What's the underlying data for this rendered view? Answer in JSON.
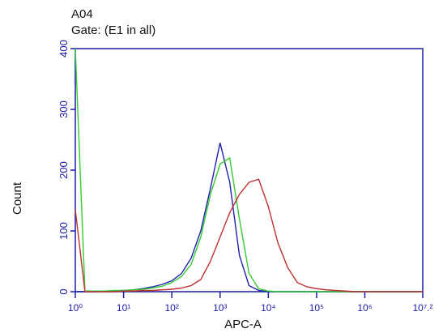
{
  "chart_data": {
    "type": "line",
    "title": "A04",
    "subtitle": "Gate: (E1 in all)",
    "x_label": "APC-A",
    "y_label": "Count",
    "log_x": true,
    "axis_color": "#1a1aa6",
    "x": [
      1,
      1.585,
      2.512,
      3.981,
      6.31,
      10,
      15.85,
      25.12,
      39.81,
      63.1,
      100,
      158.5,
      251.2,
      398.1,
      631,
      1000,
      1585,
      2512,
      3981,
      6310,
      10000,
      15850,
      25120,
      39810,
      63100,
      100000,
      158500,
      251200,
      398100,
      631000,
      1000000,
      1585000,
      2512000,
      3981000,
      6310000,
      10000000,
      15850000
    ],
    "series": [
      {
        "name": "blue",
        "color": "#1f1fb0",
        "values": [
          0,
          0,
          0,
          1,
          1,
          2,
          3,
          5,
          8,
          12,
          18,
          30,
          55,
          100,
          170,
          245,
          180,
          60,
          10,
          2,
          0,
          0,
          0,
          0,
          0,
          0,
          0,
          0,
          0,
          0,
          0,
          0,
          0,
          0,
          0,
          0,
          0
        ]
      },
      {
        "name": "green",
        "color": "#33cc33",
        "values": [
          400,
          1,
          1,
          1,
          2,
          2,
          3,
          4,
          6,
          9,
          15,
          25,
          45,
          90,
          160,
          210,
          220,
          120,
          30,
          5,
          1,
          0,
          0,
          0,
          0,
          0,
          0,
          0,
          0,
          0,
          0,
          0,
          0,
          0,
          0,
          0,
          0
        ]
      },
      {
        "name": "red",
        "color": "#c03030",
        "values": [
          135,
          0,
          0,
          0,
          0,
          1,
          1,
          2,
          2,
          3,
          4,
          6,
          10,
          20,
          50,
          90,
          130,
          160,
          180,
          185,
          140,
          80,
          40,
          15,
          8,
          5,
          3,
          2,
          1,
          0,
          0,
          0,
          0,
          0,
          0,
          0,
          0
        ]
      }
    ],
    "xlim": [
      1,
      15848932
    ],
    "ylim": [
      0,
      400
    ],
    "xticks": [
      {
        "value": 1,
        "label": "10⁰"
      },
      {
        "value": 10,
        "label": "10¹"
      },
      {
        "value": 100,
        "label": "10²"
      },
      {
        "value": 1000,
        "label": "10³"
      },
      {
        "value": 10000,
        "label": "10⁴"
      },
      {
        "value": 100000,
        "label": "10⁵"
      },
      {
        "value": 1000000,
        "label": "10⁶"
      },
      {
        "value": 15848932,
        "label": "10⁷.²"
      }
    ],
    "yticks": [
      0,
      100,
      200,
      300,
      400
    ]
  }
}
